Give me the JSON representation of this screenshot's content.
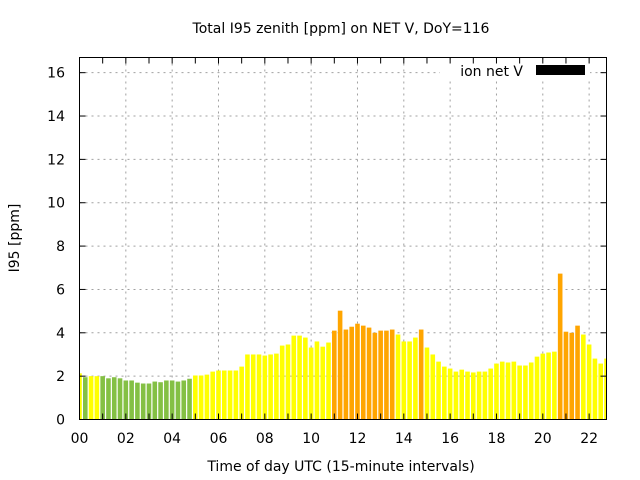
{
  "chart_data": {
    "type": "bar",
    "title": "Total I95 zenith [ppm] on NET V, DoY=116",
    "xlabel": "Time of day UTC (15-minute intervals)",
    "ylabel": "I95 [ppm]",
    "ylim": [
      0,
      16.7
    ],
    "xlim_hours": [
      0,
      22.75
    ],
    "interval_hours": 0.25,
    "grid": true,
    "legend": {
      "label": "ion net V",
      "placement": "top-right",
      "color": "#000000"
    },
    "x_ticks": [
      "00",
      "02",
      "04",
      "06",
      "08",
      "10",
      "12",
      "14",
      "16",
      "18",
      "20",
      "22"
    ],
    "y_ticks": [
      "0",
      "2",
      "4",
      "6",
      "8",
      "10",
      "12",
      "14",
      "16"
    ],
    "colors": {
      "low": "#84c044",
      "mid": "#ffff00",
      "high": "#ffa500"
    },
    "values": [
      2.13,
      1.95,
      2.0,
      2.0,
      2.0,
      1.9,
      1.95,
      1.9,
      1.8,
      1.8,
      1.7,
      1.66,
      1.66,
      1.75,
      1.72,
      1.8,
      1.8,
      1.75,
      1.8,
      1.88,
      2.03,
      2.03,
      2.07,
      2.21,
      2.26,
      2.26,
      2.26,
      2.26,
      2.44,
      3.0,
      3.0,
      3.0,
      2.95,
      3.0,
      3.04,
      3.41,
      3.46,
      3.87,
      3.87,
      3.78,
      3.32,
      3.6,
      3.36,
      3.55,
      4.1,
      5.02,
      4.15,
      4.28,
      4.42,
      4.33,
      4.24,
      4.0,
      4.1,
      4.1,
      4.15,
      3.92,
      3.6,
      3.6,
      3.78,
      4.15,
      3.32,
      3.0,
      2.67,
      2.44,
      2.35,
      2.21,
      2.3,
      2.21,
      2.17,
      2.21,
      2.21,
      2.35,
      2.58,
      2.67,
      2.63,
      2.67,
      2.49,
      2.49,
      2.63,
      2.9,
      3.04,
      3.09,
      3.13,
      6.73,
      4.05,
      4.0,
      4.33,
      3.92,
      3.46,
      2.81,
      2.58,
      2.81
    ],
    "levels": [
      "mid",
      "low",
      "mid",
      "mid",
      "low",
      "low",
      "low",
      "low",
      "low",
      "low",
      "low",
      "low",
      "low",
      "low",
      "low",
      "low",
      "low",
      "low",
      "low",
      "low",
      "mid",
      "mid",
      "mid",
      "mid",
      "mid",
      "mid",
      "mid",
      "mid",
      "mid",
      "mid",
      "mid",
      "mid",
      "mid",
      "mid",
      "mid",
      "mid",
      "mid",
      "mid",
      "mid",
      "mid",
      "mid",
      "mid",
      "mid",
      "mid",
      "high",
      "high",
      "high",
      "high",
      "high",
      "high",
      "high",
      "high",
      "high",
      "high",
      "high",
      "mid",
      "mid",
      "mid",
      "mid",
      "high",
      "mid",
      "mid",
      "mid",
      "mid",
      "mid",
      "mid",
      "mid",
      "mid",
      "mid",
      "mid",
      "mid",
      "mid",
      "mid",
      "mid",
      "mid",
      "mid",
      "mid",
      "mid",
      "mid",
      "mid",
      "mid",
      "mid",
      "mid",
      "high",
      "high",
      "high",
      "high",
      "mid",
      "mid",
      "mid",
      "mid",
      "mid"
    ]
  }
}
